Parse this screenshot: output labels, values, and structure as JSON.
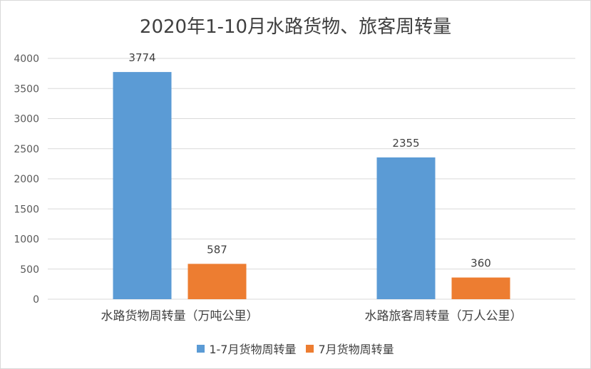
{
  "chart_data": {
    "type": "bar",
    "title": "2020年1-10月水路货物、旅客周转量",
    "categories": [
      "水路货物周转量（万吨公里）",
      "水路旅客周转量（万人公里）"
    ],
    "series": [
      {
        "name": "1-7月货物周转量",
        "color": "#5b9bd5",
        "values": [
          3774,
          2355
        ]
      },
      {
        "name": "7月货物周转量",
        "color": "#ed7d31",
        "values": [
          587,
          360
        ]
      }
    ],
    "ylim": [
      0,
      4000
    ],
    "yticks": [
      0,
      500,
      1000,
      1500,
      2000,
      2500,
      3000,
      3500,
      4000
    ],
    "grid": true,
    "legend_position": "bottom"
  }
}
